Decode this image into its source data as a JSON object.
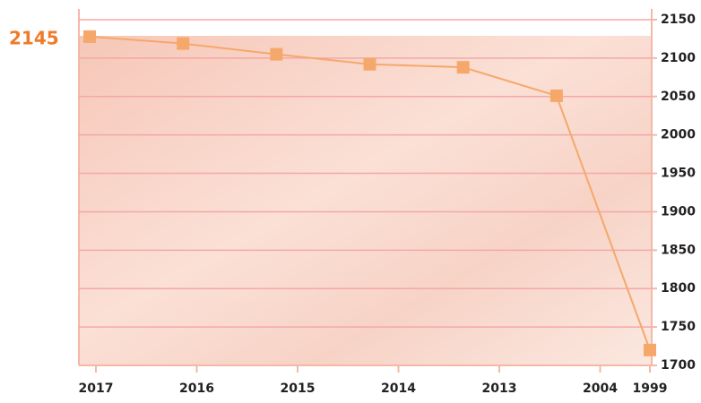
{
  "chart_data": {
    "type": "line",
    "annotation": "2145",
    "categories": [
      "2017",
      "2016",
      "2015",
      "2014",
      "2013",
      "2004",
      "1999"
    ],
    "series": [
      {
        "color": "#f5a86a",
        "values": [
          2128,
          2119,
          2105,
          2092,
          2088,
          2051,
          1720
        ]
      }
    ],
    "ylim": [
      1700,
      2150
    ],
    "yticks": [
      1700,
      1750,
      1800,
      1850,
      1900,
      1950,
      2000,
      2050,
      2100,
      2150
    ],
    "grid": true,
    "y_axis_side": "right"
  }
}
